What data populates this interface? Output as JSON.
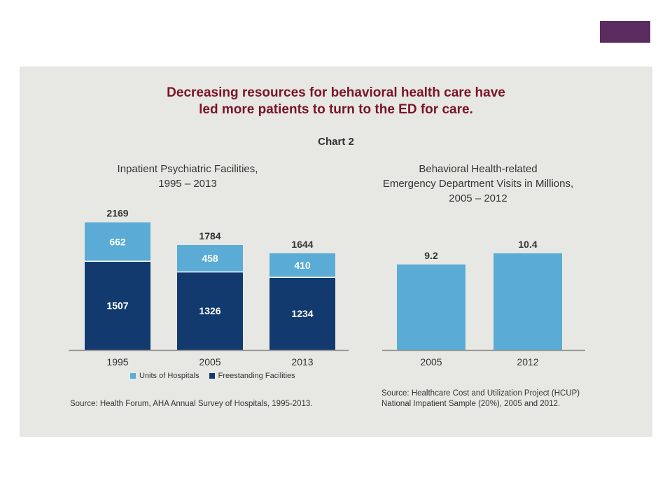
{
  "colors": {
    "accent": "#5b2c60",
    "title": "#7a1428",
    "units_of_hospitals": "#5aacd6",
    "freestanding_facilities": "#123a6e",
    "panel_bg": "#e7e8e3",
    "axis": "#8a8a8a"
  },
  "slide": {
    "title_lines": [
      "Decreasing resources for behavioral health care have",
      "led more patients to turn to the ED for care."
    ],
    "subtitle": "Chart 2"
  },
  "left": {
    "title_lines": [
      "Inpatient Psychiatric Facilities,",
      "1995 – 2013"
    ],
    "source": "Source: Health Forum, AHA Annual Survey of Hospitals, 1995-2013."
  },
  "right": {
    "title_lines": [
      "Behavioral Health-related",
      "Emergency Department Visits in Millions,",
      "2005 – 2012"
    ],
    "source_lines": [
      "Source: Healthcare Cost and Utilization Project (HCUP)",
      "National Impatient Sample (20%), 2005 and 2012."
    ]
  },
  "chart_data": [
    {
      "type": "bar",
      "stacked": true,
      "title": "Inpatient Psychiatric Facilities, 1995 – 2013",
      "categories": [
        "1995",
        "2005",
        "2013"
      ],
      "series": [
        {
          "name": "Freestanding Facilities",
          "values": [
            1507,
            1326,
            1234
          ]
        },
        {
          "name": "Units of Hospitals",
          "values": [
            662,
            458,
            410
          ]
        }
      ],
      "totals": [
        2169,
        1784,
        1644
      ],
      "ylim": [
        0,
        2200
      ],
      "legend": "bottom",
      "grid": false
    },
    {
      "type": "bar",
      "title": "Behavioral Health-related Emergency Department Visits in Millions, 2005 – 2012",
      "categories": [
        "2005",
        "2012"
      ],
      "values": [
        9.2,
        10.4
      ],
      "value_labels": [
        "9.2",
        "10.4"
      ],
      "ylim": [
        0,
        14
      ],
      "grid": false
    }
  ]
}
